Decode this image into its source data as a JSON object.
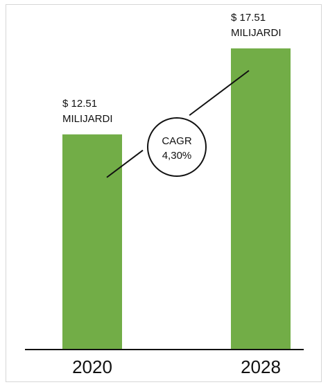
{
  "chart_data": {
    "type": "bar",
    "categories": [
      "2020",
      "2028"
    ],
    "values": [
      12.51,
      17.51
    ],
    "ylim": [
      0,
      20
    ],
    "grid": false,
    "legend": "none",
    "data_labels": [
      [
        "$ 12.51",
        "MILIJARDI"
      ],
      [
        "$ 17.51",
        "MILIJARDI"
      ]
    ],
    "annotation": {
      "line1": "CAGR",
      "line2": "4,30%"
    },
    "bar_color": "#72ad47",
    "axis_color": "#111111"
  }
}
